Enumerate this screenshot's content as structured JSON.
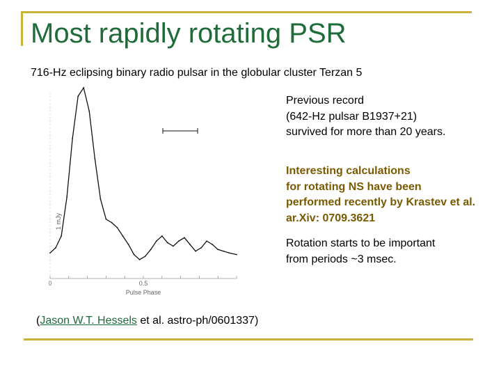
{
  "slide": {
    "title": "Most rapidly rotating PSR",
    "subtitle": "716-Hz eclipsing binary radio pulsar in the globular cluster Terzan 5",
    "accent_color": "#c9b23a",
    "title_color": "#1f6b3a",
    "highlight_color": "#7a5a00"
  },
  "notes": {
    "previous_record": [
      "Previous record",
      "(642-Hz pulsar B1937+21)",
      "survived for more than 20 years."
    ],
    "interesting_calculations": [
      "Interesting calculations",
      "for rotating NS have been",
      "performed recently by Krastev et al.",
      "ar.Xiv: 0709.3621"
    ],
    "rotation": [
      "Rotation starts to be important",
      "from periods ~3 msec."
    ]
  },
  "citation": {
    "open": "(",
    "author_link": "Jason W.T. Hessels",
    "rest": " et al.  astro-ph/0601337)"
  },
  "chart_data": {
    "type": "line",
    "title": "",
    "xlabel": "Pulse Phase",
    "ylabel": "",
    "y_tick_labels": [
      "1 mJy"
    ],
    "xlim": [
      0,
      1
    ],
    "x_tick_labels": [
      "0",
      "0.5"
    ],
    "grid": false,
    "legend": "none",
    "annotations": [
      "horizontal error bar (time resolution) near top center"
    ],
    "series": [
      {
        "x": [
          0.0,
          0.03,
          0.06,
          0.09,
          0.12,
          0.15,
          0.18,
          0.21,
          0.24,
          0.27,
          0.3,
          0.33,
          0.36,
          0.39,
          0.42,
          0.45,
          0.48,
          0.51,
          0.54,
          0.57,
          0.6,
          0.63,
          0.66,
          0.69,
          0.72,
          0.75,
          0.78,
          0.81,
          0.84,
          0.87,
          0.9,
          0.93,
          0.96,
          1.0
        ],
        "values": [
          0.02,
          0.05,
          0.12,
          0.35,
          0.7,
          0.95,
          1.0,
          0.86,
          0.58,
          0.34,
          0.22,
          0.2,
          0.17,
          0.12,
          0.07,
          0.01,
          -0.02,
          0.0,
          0.04,
          0.09,
          0.12,
          0.08,
          0.06,
          0.09,
          0.11,
          0.07,
          0.03,
          0.05,
          0.09,
          0.07,
          0.04,
          0.03,
          0.02,
          0.01
        ]
      }
    ]
  }
}
